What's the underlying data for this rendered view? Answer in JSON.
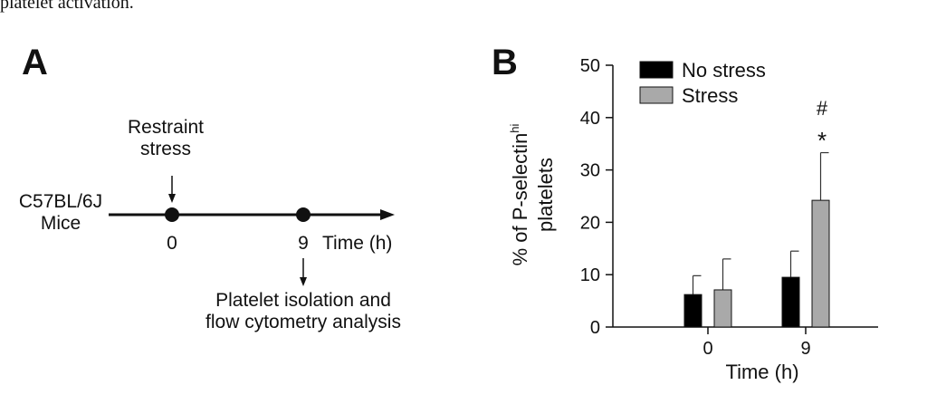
{
  "caption": "platelet activation.",
  "panel_a": {
    "label": "A",
    "strain_line1": "C57BL/6J",
    "strain_line2": "Mice",
    "stress_line1": "Restraint",
    "stress_line2": "stress",
    "t0": "0",
    "t9": "9",
    "time_label": "Time (h)",
    "analysis_line1": "Platelet isolation and",
    "analysis_line2": "flow cytometry analysis"
  },
  "panel_b": {
    "label": "B",
    "hash_mark": "#",
    "star_mark": "*"
  },
  "chart_data": {
    "type": "bar",
    "categories": [
      "0",
      "9"
    ],
    "series": [
      {
        "name": "No stress",
        "color": "#000000",
        "values": [
          6.2,
          9.5
        ],
        "errors": [
          3.6,
          5.0
        ]
      },
      {
        "name": "Stress",
        "color": "#a9a9a9",
        "values": [
          7.1,
          24.2
        ],
        "errors": [
          5.9,
          9.1
        ]
      }
    ],
    "xlabel": "Time (h)",
    "ylabel_prefix": "% of P-selectin",
    "ylabel_superscript": "hi",
    "ylabel_line2": "platelets",
    "ylim": [
      0,
      50
    ],
    "yticks": [
      0,
      10,
      20,
      30,
      40,
      50
    ],
    "legend_position": "top-left",
    "grid": false
  }
}
